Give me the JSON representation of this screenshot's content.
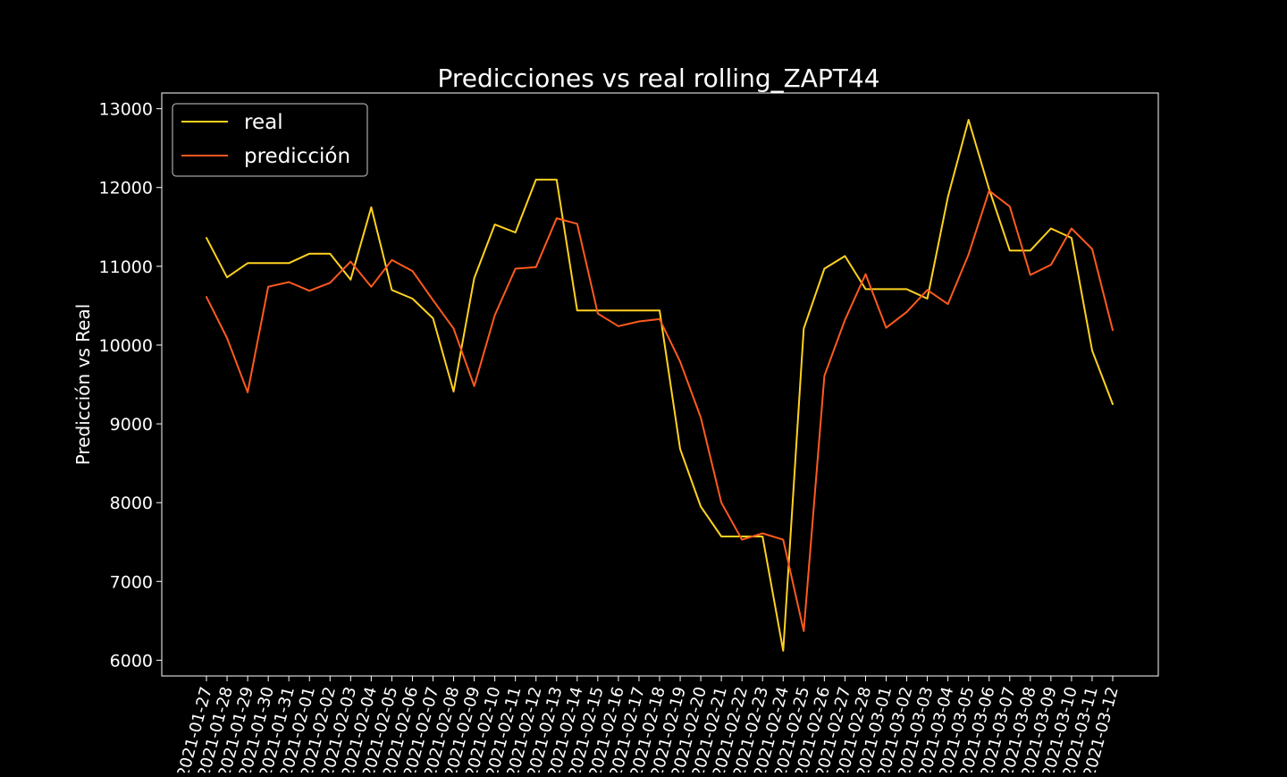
{
  "chart_data": {
    "type": "line",
    "title": "Predicciones vs real rolling_ZAPT44",
    "xlabel": "",
    "ylabel": "Predicción vs Real",
    "ylim": [
      5800,
      13200
    ],
    "yticks": [
      6000,
      7000,
      8000,
      9000,
      10000,
      11000,
      12000,
      13000
    ],
    "grid": false,
    "legend_position": "top-left",
    "x": [
      "2021-01-27",
      "2021-01-28",
      "2021-01-29",
      "2021-01-30",
      "2021-01-31",
      "2021-02-01",
      "2021-02-02",
      "2021-02-03",
      "2021-02-04",
      "2021-02-05",
      "2021-02-06",
      "2021-02-07",
      "2021-02-08",
      "2021-02-09",
      "2021-02-10",
      "2021-02-11",
      "2021-02-12",
      "2021-02-13",
      "2021-02-14",
      "2021-02-15",
      "2021-02-16",
      "2021-02-17",
      "2021-02-18",
      "2021-02-19",
      "2021-02-20",
      "2021-02-21",
      "2021-02-22",
      "2021-02-23",
      "2021-02-24",
      "2021-02-25",
      "2021-02-26",
      "2021-02-27",
      "2021-02-28",
      "2021-03-01",
      "2021-03-02",
      "2021-03-03",
      "2021-03-04",
      "2021-03-05",
      "2021-03-06",
      "2021-03-07",
      "2021-03-08",
      "2021-03-09",
      "2021-03-10",
      "2021-03-11",
      "2021-03-12"
    ],
    "series": [
      {
        "name": "real",
        "color": "#FFD21F",
        "values": [
          11360,
          10860,
          11040,
          11040,
          11040,
          11160,
          11160,
          10830,
          11750,
          10700,
          10590,
          10340,
          9410,
          10850,
          11530,
          11430,
          12100,
          12100,
          10440,
          10440,
          10440,
          10440,
          10440,
          8680,
          7950,
          7570,
          7570,
          7570,
          6120,
          10210,
          10970,
          11130,
          10710,
          10710,
          10710,
          10590,
          11880,
          12860,
          11980,
          11200,
          11200,
          11480,
          11360,
          9930,
          9250
        ]
      },
      {
        "name": "predicción",
        "color": "#FF5A1E",
        "values": [
          10610,
          10090,
          9400,
          10740,
          10800,
          10690,
          10790,
          11060,
          10740,
          11080,
          10940,
          10570,
          10210,
          9480,
          10380,
          10970,
          10990,
          11610,
          11540,
          10400,
          10240,
          10300,
          10330,
          9790,
          9080,
          8000,
          7530,
          7610,
          7530,
          6370,
          9610,
          10320,
          10900,
          10220,
          10420,
          10700,
          10520,
          11150,
          11960,
          11760,
          10890,
          11020,
          11480,
          11220,
          10190
        ]
      }
    ]
  }
}
